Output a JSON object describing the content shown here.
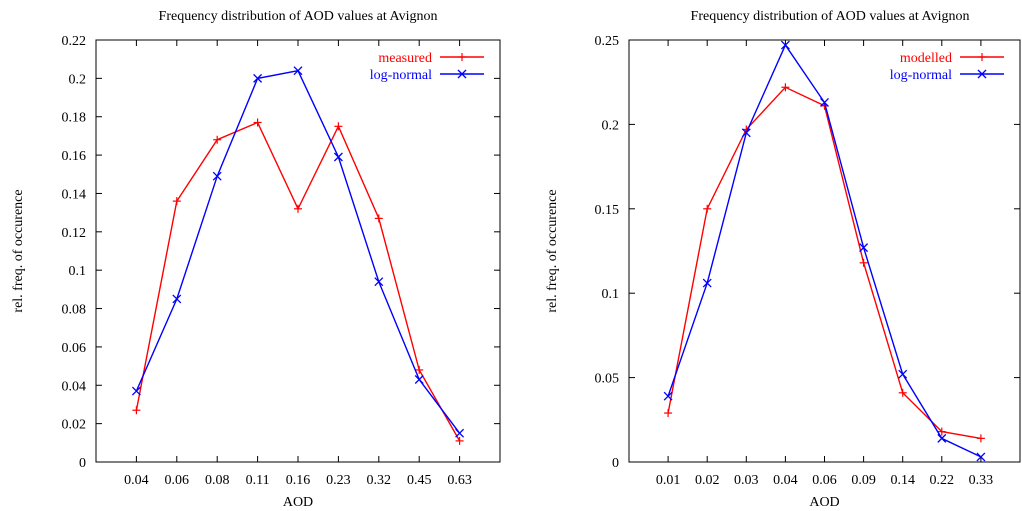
{
  "chart_data": [
    {
      "type": "line",
      "title": "Frequency distribution of AOD values at Avignon",
      "xlabel": "AOD",
      "ylabel": "rel. freq. of occurence",
      "categories": [
        "0.04",
        "0.06",
        "0.08",
        "0.11",
        "0.16",
        "0.23",
        "0.32",
        "0.45",
        "0.63"
      ],
      "ylim": [
        0,
        0.22
      ],
      "yticks": [
        "0",
        "0.02",
        "0.04",
        "0.06",
        "0.08",
        "0.1",
        "0.12",
        "0.14",
        "0.16",
        "0.18",
        "0.2",
        "0.22"
      ],
      "grid": false,
      "legend_position": "top-right",
      "series": [
        {
          "name": "measured",
          "color": "#ff0000",
          "marker": "plus",
          "values": [
            0.027,
            0.136,
            0.168,
            0.177,
            0.132,
            0.175,
            0.127,
            0.048,
            0.011
          ]
        },
        {
          "name": "log-normal",
          "color": "#0000ff",
          "marker": "cross",
          "values": [
            0.037,
            0.085,
            0.149,
            0.2,
            0.204,
            0.159,
            0.094,
            0.043,
            0.015
          ]
        }
      ]
    },
    {
      "type": "line",
      "title": "Frequency distribution of AOD values at Avignon",
      "xlabel": "AOD",
      "ylabel": "rel. freq. of occurence",
      "categories": [
        "0.01",
        "0.02",
        "0.03",
        "0.04",
        "0.06",
        "0.09",
        "0.14",
        "0.22",
        "0.33"
      ],
      "ylim": [
        0,
        0.25
      ],
      "yticks": [
        "0",
        "0.05",
        "0.1",
        "0.15",
        "0.2",
        "0.25"
      ],
      "grid": false,
      "legend_position": "top-right",
      "series": [
        {
          "name": "modelled",
          "color": "#ff0000",
          "marker": "plus",
          "values": [
            0.029,
            0.15,
            0.197,
            0.222,
            0.211,
            0.118,
            0.041,
            0.018,
            0.014
          ]
        },
        {
          "name": "log-normal",
          "color": "#0000ff",
          "marker": "cross",
          "values": [
            0.039,
            0.106,
            0.195,
            0.247,
            0.213,
            0.127,
            0.052,
            0.014,
            0.003
          ]
        }
      ]
    }
  ]
}
